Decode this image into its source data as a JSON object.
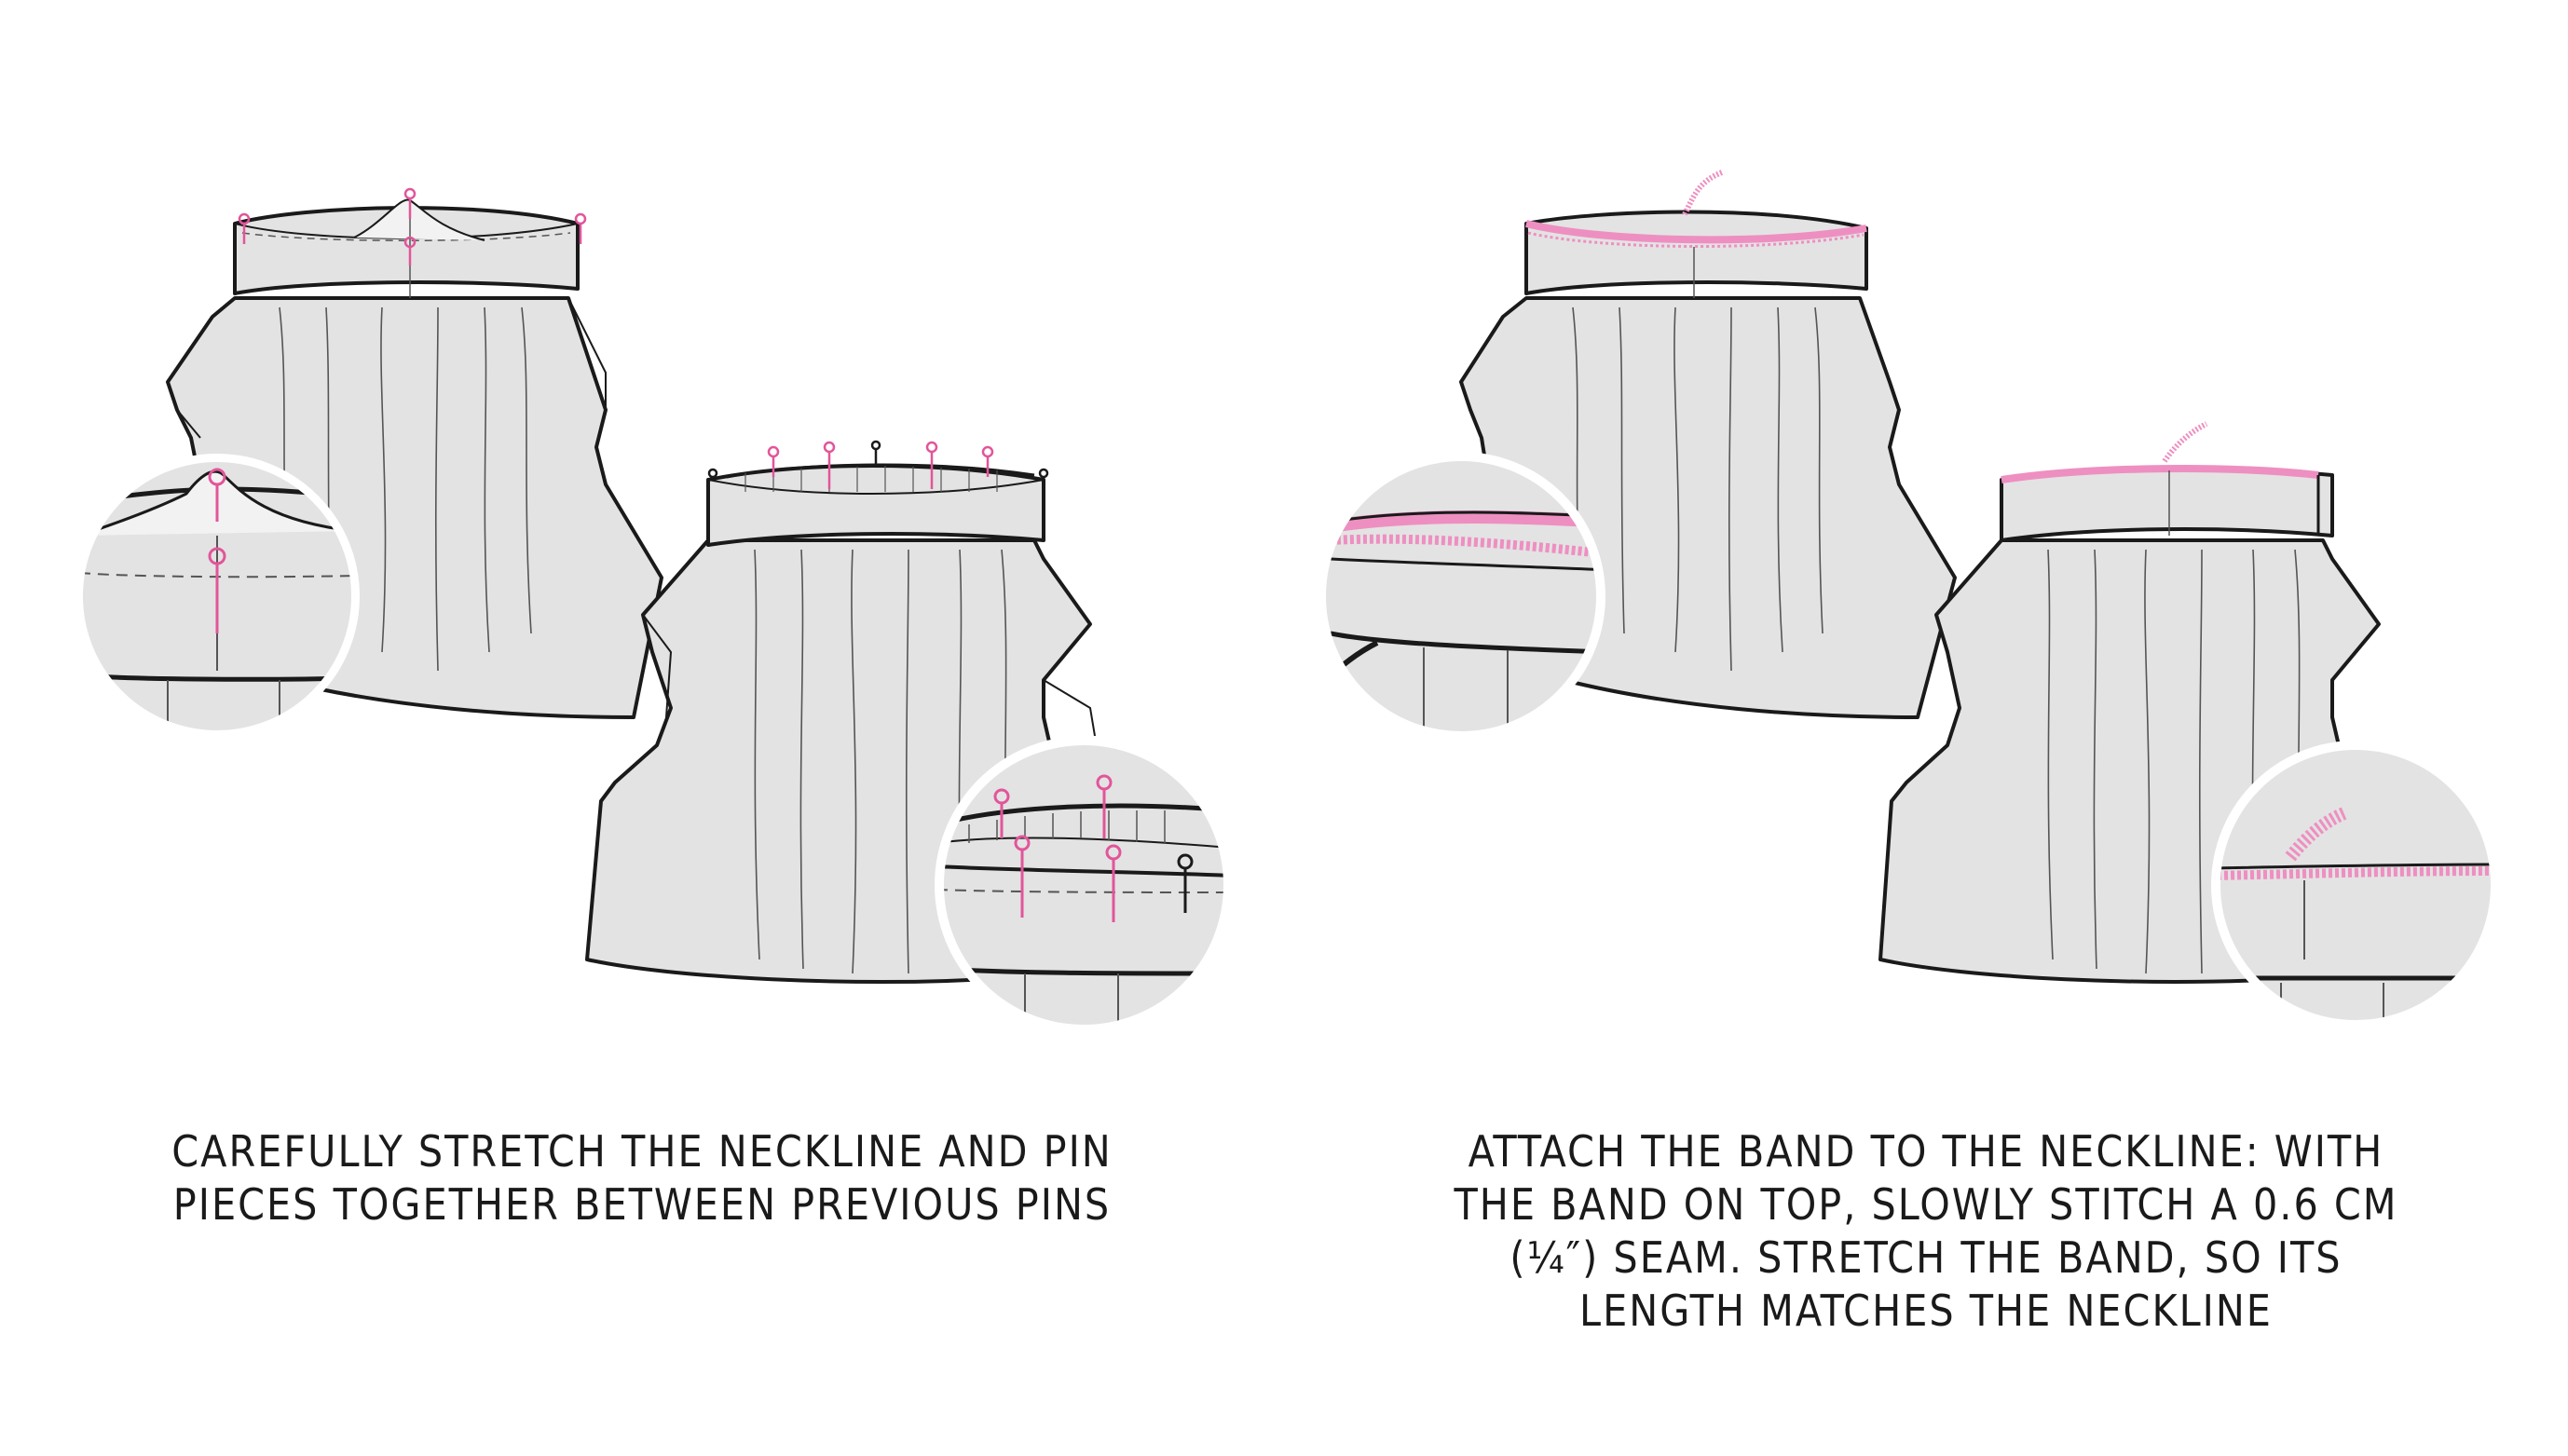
{
  "colors": {
    "fabric": "#e3e3e3",
    "outline": "#1a1a1a",
    "pin": "#e2559a",
    "serger": "#ee8fc1",
    "background": "#ffffff"
  },
  "steps": [
    {
      "caption_lines": [
        "CAREFULLY STRETCH THE NECKLINE AND PIN",
        "PIECES TOGETHER BETWEEN PREVIOUS PINS"
      ]
    },
    {
      "caption_lines": [
        "ATTACH THE BAND TO THE NECKLINE: WITH",
        "THE BAND ON TOP, SLOWLY STITCH A 0.6 CM",
        "(¼″) SEAM. STRETCH THE BAND, SO ITS",
        "LENGTH MATCHES THE NECKLINE"
      ]
    }
  ]
}
